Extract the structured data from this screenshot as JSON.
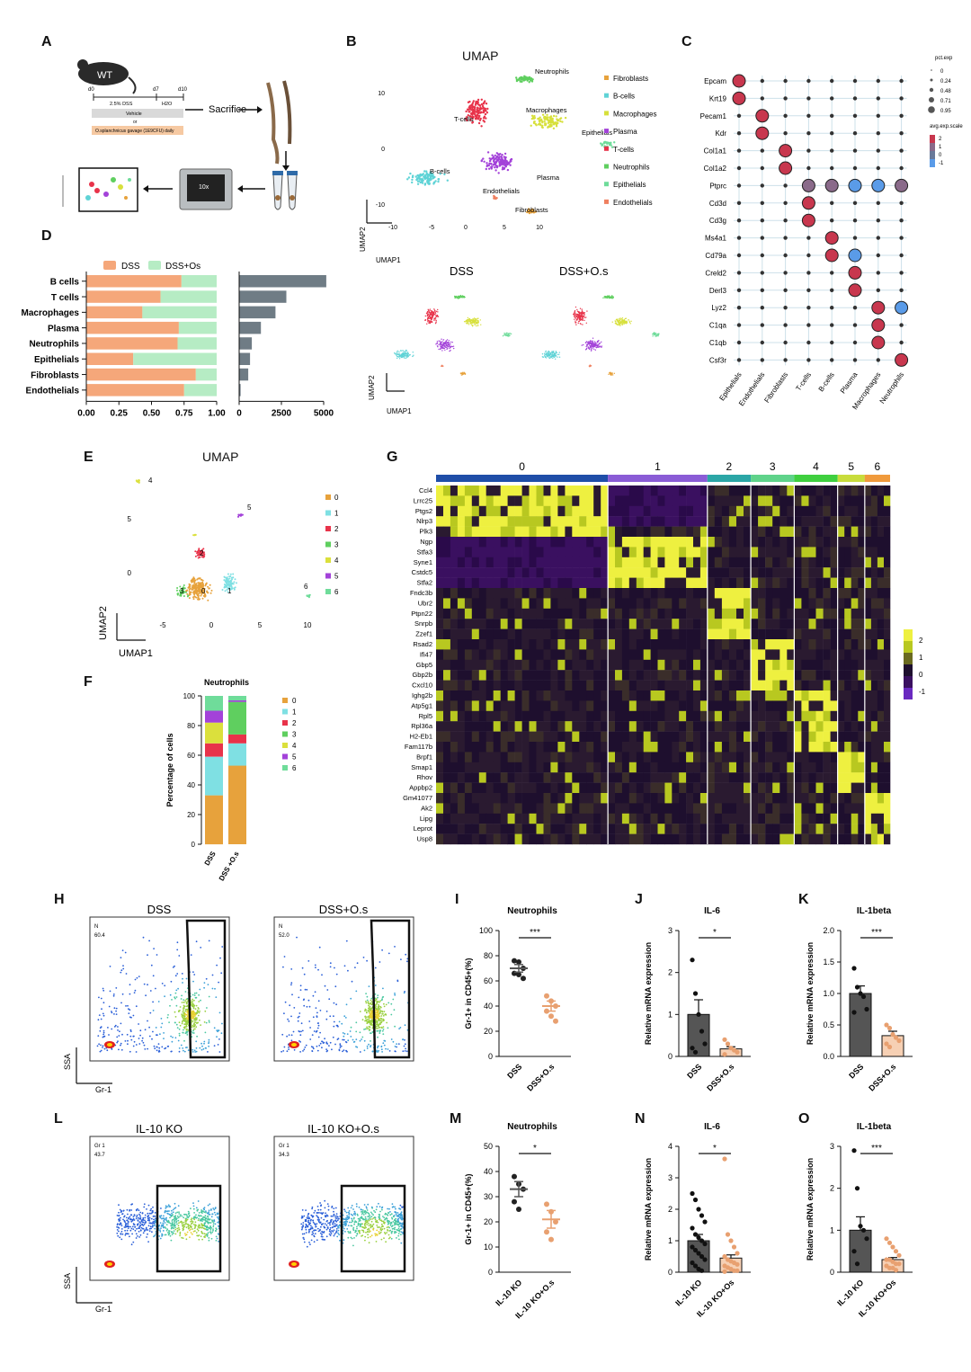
{
  "panels": {
    "A": "A",
    "B": "B",
    "C": "C",
    "D": "D",
    "E": "E",
    "F": "F",
    "G": "G",
    "H": "H",
    "I": "I",
    "J": "J",
    "K": "K",
    "L": "L",
    "M": "M",
    "N": "N",
    "O": "O"
  },
  "panelA": {
    "mouse_label": "WT",
    "d0": "d0",
    "d7": "d7",
    "d10": "d10",
    "dss_label": "2.5% DSS",
    "h2o_label": "H2O",
    "vehicle": "Vehicle",
    "or": "or",
    "gavage": "O.splanchnicus gavage (1E9CFU) daily",
    "sacrifice": "Sacrifice",
    "chip_text": "10x"
  },
  "panelB": {
    "title": "UMAP",
    "xlabel": "UMAP1",
    "ylabel": "UMAP2",
    "xticks": [
      "-10",
      "-5",
      "0",
      "5",
      "10"
    ],
    "yticks": [
      "10",
      "0",
      "-10"
    ],
    "clusters": [
      {
        "name": "Neutrophils",
        "color": "#5fcf5f"
      },
      {
        "name": "Macrophages",
        "color": "#d7e03c"
      },
      {
        "name": "T-cells",
        "color": "#e8334a"
      },
      {
        "name": "Epithelials",
        "color": "#6fdc9a"
      },
      {
        "name": "B-cells",
        "color": "#5fd3d6"
      },
      {
        "name": "Plasma",
        "color": "#a342d9"
      },
      {
        "name": "Endothelials",
        "color": "#ef8060"
      },
      {
        "name": "Fibroblasts",
        "color": "#e7a23c"
      }
    ],
    "legend": [
      {
        "name": "Fibroblasts",
        "color": "#e7a23c"
      },
      {
        "name": "B-cells",
        "color": "#5fd3d6"
      },
      {
        "name": "Macrophages",
        "color": "#d7e03c"
      },
      {
        "name": "Plasma",
        "color": "#a342d9"
      },
      {
        "name": "T-cells",
        "color": "#e8334a"
      },
      {
        "name": "Neutrophils",
        "color": "#5fcf5f"
      },
      {
        "name": "Epithelials",
        "color": "#6fdc9a"
      },
      {
        "name": "Endothelials",
        "color": "#ef8060"
      }
    ],
    "sub_dss": "DSS",
    "sub_dssos": "DSS+O.s"
  },
  "panelC": {
    "genes": [
      "Epcam",
      "Krt19",
      "Pecam1",
      "Kdr",
      "Col1a1",
      "Col1a2",
      "Ptprc",
      "Cd3d",
      "Cd3g",
      "Ms4a1",
      "Cd79a",
      "Creld2",
      "Derl3",
      "Lyz2",
      "C1qa",
      "C1qb",
      "Csf3r"
    ],
    "celltypes": [
      "Epithelials",
      "Endothelials",
      "Fibroblasts",
      "T-cells",
      "B-cells",
      "Plasma",
      "Macrophages",
      "Neutrophils"
    ],
    "size_legend_title": "pct.exp",
    "size_legend_values": [
      "0",
      "0.24",
      "0.48",
      "0.71",
      "0.95"
    ],
    "color_legend_title": "avg.exp.scale",
    "color_legend_values": [
      "2",
      "1",
      "0",
      "-1"
    ],
    "big_dots": [
      [
        0,
        0,
        2
      ],
      [
        1,
        0,
        2
      ],
      [
        2,
        1,
        2
      ],
      [
        3,
        1,
        2
      ],
      [
        4,
        2,
        2
      ],
      [
        5,
        2,
        2
      ],
      [
        6,
        3,
        1
      ],
      [
        6,
        4,
        1
      ],
      [
        6,
        5,
        -1
      ],
      [
        6,
        6,
        -1
      ],
      [
        6,
        7,
        1
      ],
      [
        7,
        3,
        2
      ],
      [
        8,
        3,
        2
      ],
      [
        9,
        4,
        2
      ],
      [
        10,
        4,
        2
      ],
      [
        10,
        5,
        -1
      ],
      [
        11,
        5,
        2
      ],
      [
        12,
        5,
        2
      ],
      [
        13,
        6,
        2
      ],
      [
        13,
        7,
        -1
      ],
      [
        14,
        6,
        2
      ],
      [
        15,
        6,
        2
      ],
      [
        16,
        7,
        2
      ]
    ]
  },
  "chart_data": [
    {
      "panel": "D",
      "type": "bar",
      "orientation": "horizontal-stacked",
      "categories": [
        "B cells",
        "T cells",
        "Macrophages",
        "Plasma",
        "Neutrophils",
        "Epithelials",
        "Fibroblasts",
        "Endothelials"
      ],
      "series": [
        {
          "name": "DSS",
          "values": [
            0.73,
            0.57,
            0.43,
            0.71,
            0.7,
            0.36,
            0.84,
            0.75
          ]
        },
        {
          "name": "DSS+Os",
          "values": [
            0.27,
            0.43,
            0.57,
            0.29,
            0.3,
            0.64,
            0.16,
            0.25
          ]
        }
      ],
      "xticks": [
        "0.00",
        "0.25",
        "0.50",
        "0.75",
        "1.00"
      ],
      "xlim": [
        0,
        1
      ]
    },
    {
      "panel": "D-counts",
      "type": "bar",
      "orientation": "horizontal",
      "categories": [
        "B cells",
        "T cells",
        "Macrophages",
        "Plasma",
        "Neutrophils",
        "Epithelials",
        "Fibroblasts",
        "Endothelials"
      ],
      "values": [
        4800,
        2600,
        2000,
        1200,
        700,
        600,
        500,
        80
      ],
      "xticks": [
        "0",
        "2500",
        "5000"
      ],
      "xlim": [
        0,
        5200
      ]
    },
    {
      "panel": "F",
      "type": "bar",
      "orientation": "vertical-stacked",
      "title": "Neutrophils",
      "ylabel": "Percentage of cells",
      "categories": [
        "DSS",
        "DSS +O.s"
      ],
      "series": [
        {
          "name": "0",
          "values": [
            33,
            53
          ]
        },
        {
          "name": "1",
          "values": [
            26,
            15
          ]
        },
        {
          "name": "2",
          "values": [
            9,
            6
          ]
        },
        {
          "name": "3",
          "values": [
            0,
            22
          ]
        },
        {
          "name": "4",
          "values": [
            14,
            0
          ]
        },
        {
          "name": "5",
          "values": [
            8,
            1
          ]
        },
        {
          "name": "6",
          "values": [
            10,
            3
          ]
        }
      ],
      "yticks": [
        "0",
        "20",
        "40",
        "60",
        "80",
        "100"
      ],
      "ylim": [
        0,
        100
      ]
    },
    {
      "panel": "I",
      "type": "scatter",
      "title": "Neutrophils",
      "ylabel": "Gr-1+ in CD45+(%)",
      "categories": [
        "DSS",
        "DSS+O.s"
      ],
      "series": [
        {
          "name": "DSS",
          "values": [
            76,
            75,
            70,
            66,
            65,
            62
          ],
          "mean": 70,
          "sem": 3
        },
        {
          "name": "DSS+O.s",
          "values": [
            48,
            44,
            40,
            36,
            32,
            28
          ],
          "mean": 40,
          "sem": 4
        }
      ],
      "sig": "***",
      "ylim": [
        0,
        100
      ],
      "yticks": [
        "0",
        "20",
        "40",
        "60",
        "80",
        "100"
      ]
    },
    {
      "panel": "J",
      "type": "bar",
      "title": "IL-6",
      "ylabel": "Relative mRNA expression",
      "categories": [
        "DSS",
        "DSS+O.s"
      ],
      "means": [
        1.0,
        0.18
      ],
      "sems": [
        0.35,
        0.05
      ],
      "points": [
        [
          2.3,
          1.5,
          1.0,
          0.6,
          0.3,
          0.2,
          0.1
        ],
        [
          0.4,
          0.3,
          0.2,
          0.15,
          0.1,
          0.05
        ]
      ],
      "sig": "*",
      "ylim": [
        0,
        3
      ],
      "yticks": [
        "0",
        "1",
        "2",
        "3"
      ]
    },
    {
      "panel": "K",
      "type": "bar",
      "title": "IL-1beta",
      "ylabel": "Relative mRNA expression",
      "categories": [
        "DSS",
        "DSS+O.s"
      ],
      "means": [
        1.0,
        0.33
      ],
      "sems": [
        0.12,
        0.07
      ],
      "points": [
        [
          1.4,
          1.1,
          1.0,
          0.95,
          0.75,
          0.7
        ],
        [
          0.5,
          0.45,
          0.35,
          0.3,
          0.25,
          0.2,
          0.15
        ]
      ],
      "sig": "***",
      "ylim": [
        0,
        2
      ],
      "yticks": [
        "0.0",
        "0.5",
        "1.0",
        "1.5",
        "2.0"
      ]
    },
    {
      "panel": "M",
      "type": "scatter",
      "title": "Neutrophils",
      "ylabel": "Gr-1+ in CD45+(%)",
      "categories": [
        "IL-10 KO",
        "IL-10 KO+O.s"
      ],
      "series": [
        {
          "name": "IL-10 KO",
          "values": [
            38,
            35,
            33,
            28,
            25
          ],
          "mean": 33,
          "sem": 3
        },
        {
          "name": "IL-10 KO+O.s",
          "values": [
            27,
            24,
            20,
            16,
            13
          ],
          "mean": 21,
          "sem": 3.5
        }
      ],
      "sig": "*",
      "ylim": [
        0,
        50
      ],
      "yticks": [
        "0",
        "10",
        "20",
        "30",
        "40",
        "50"
      ]
    },
    {
      "panel": "N",
      "type": "bar",
      "title": "IL-6",
      "ylabel": "Relative mRNA expression",
      "categories": [
        "IL-10 KO",
        "IL-10 KO+Os"
      ],
      "means": [
        1.0,
        0.45
      ],
      "sems": [
        0.2,
        0.1
      ],
      "points": [
        [
          2.5,
          2.3,
          2.0,
          1.8,
          1.6,
          1.4,
          1.2,
          1.1,
          1.0,
          0.9,
          0.8,
          0.7,
          0.6,
          0.5,
          0.4,
          0.3,
          0.2,
          0.1,
          0.05
        ],
        [
          3.6,
          1.2,
          1.0,
          0.8,
          0.6,
          0.5,
          0.4,
          0.35,
          0.3,
          0.25,
          0.2,
          0.15,
          0.1,
          0.05,
          0.05,
          0.02
        ]
      ],
      "sig": "*",
      "ylim": [
        0,
        4
      ],
      "yticks": [
        "0",
        "1",
        "2",
        "3",
        "4"
      ]
    },
    {
      "panel": "O",
      "type": "bar",
      "title": "IL-1beta",
      "ylabel": "Relative mRNA expression",
      "categories": [
        "IL-10 KO",
        "IL-10 KO+Os"
      ],
      "means": [
        1.0,
        0.3
      ],
      "sems": [
        0.32,
        0.05
      ],
      "points": [
        [
          2.9,
          2.0,
          1.1,
          1.0,
          0.8,
          0.5,
          0.2
        ],
        [
          0.8,
          0.7,
          0.6,
          0.5,
          0.4,
          0.3,
          0.3,
          0.25,
          0.2,
          0.2,
          0.15,
          0.1,
          0.1,
          0.05
        ]
      ],
      "sig": "***",
      "ylim": [
        0,
        3
      ],
      "yticks": [
        "0",
        "1",
        "2",
        "3"
      ]
    }
  ],
  "panelD": {
    "legend_dss": "DSS",
    "legend_dssos": "DSS+Os",
    "color_dss": "#f5a77a",
    "color_dssos": "#b6ecc4",
    "count_color": "#6f7c85"
  },
  "panelE": {
    "title": "UMAP",
    "xlabel": "UMAP1",
    "ylabel": "UMAP2",
    "xticks": [
      "-5",
      "0",
      "5",
      "10"
    ],
    "yticks": [
      "5",
      "0"
    ],
    "clusters": [
      {
        "id": "0",
        "color": "#e7a23c"
      },
      {
        "id": "1",
        "color": "#7fe0e3"
      },
      {
        "id": "2",
        "color": "#e8334a"
      },
      {
        "id": "3",
        "color": "#5fcf5f"
      },
      {
        "id": "4",
        "color": "#dbe03c"
      },
      {
        "id": "5",
        "color": "#a342d9"
      },
      {
        "id": "6",
        "color": "#6fdc9a"
      }
    ]
  },
  "panelF": {
    "legend": [
      "0",
      "1",
      "2",
      "3",
      "4",
      "5",
      "6"
    ],
    "colors": [
      "#e7a23c",
      "#7fe0e3",
      "#e8334a",
      "#5fcf5f",
      "#dbe03c",
      "#a342d9",
      "#6fdc9a"
    ]
  },
  "panelG": {
    "clusters": [
      {
        "id": "0",
        "color": "#1f4ea8",
        "weight": 190
      },
      {
        "id": "1",
        "color": "#8a5cd6",
        "weight": 110
      },
      {
        "id": "2",
        "color": "#2ba6a6",
        "weight": 48
      },
      {
        "id": "3",
        "color": "#5fd38a",
        "weight": 48
      },
      {
        "id": "4",
        "color": "#3fcf3f",
        "weight": 48
      },
      {
        "id": "5",
        "color": "#c8dc3c",
        "weight": 30
      },
      {
        "id": "6",
        "color": "#f09a3c",
        "weight": 28
      }
    ],
    "genes": [
      "Ccl4",
      "Lrrc25",
      "Ptgs2",
      "Nlrp3",
      "Plk3",
      "Ngp",
      "Stfa3",
      "Syne1",
      "Cstdc5",
      "Stfa2",
      "Fndc3b",
      "Ubr2",
      "Ptpn22",
      "Snrpb",
      "Zzef1",
      "Rsad2",
      "Ifi47",
      "Gbp5",
      "Gbp2b",
      "Cxcl10",
      "Ighg2b",
      "Atp5g1",
      "Rpl5",
      "Rpl36a",
      "H2-Eb1",
      "Fam117b",
      "Brpf1",
      "Smap1",
      "Rhov",
      "Appbp2",
      "Gm41077",
      "Ak2",
      "Lipg",
      "Leprot",
      "Usp8"
    ],
    "scale_labels": [
      "2",
      "1",
      "0",
      "-1"
    ]
  },
  "panelH": {
    "title_dss": "DSS",
    "title_dssos": "DSS+O.s",
    "gate_dss": "N",
    "gate_dss_val": "60.4",
    "gate_dssos": "N",
    "gate_dssos_val": "52.0",
    "xlabel": "Gr-1",
    "ylabel": "SSA"
  },
  "panelL": {
    "title_ko": "IL-10 KO",
    "title_koos": "IL-10 KO+O.s",
    "gate_ko": "Gr 1",
    "gate_ko_val": "43.7",
    "gate_koos": "Gr 1",
    "gate_koos_val": "34.3",
    "xlabel": "Gr-1",
    "ylabel": "SSA"
  }
}
